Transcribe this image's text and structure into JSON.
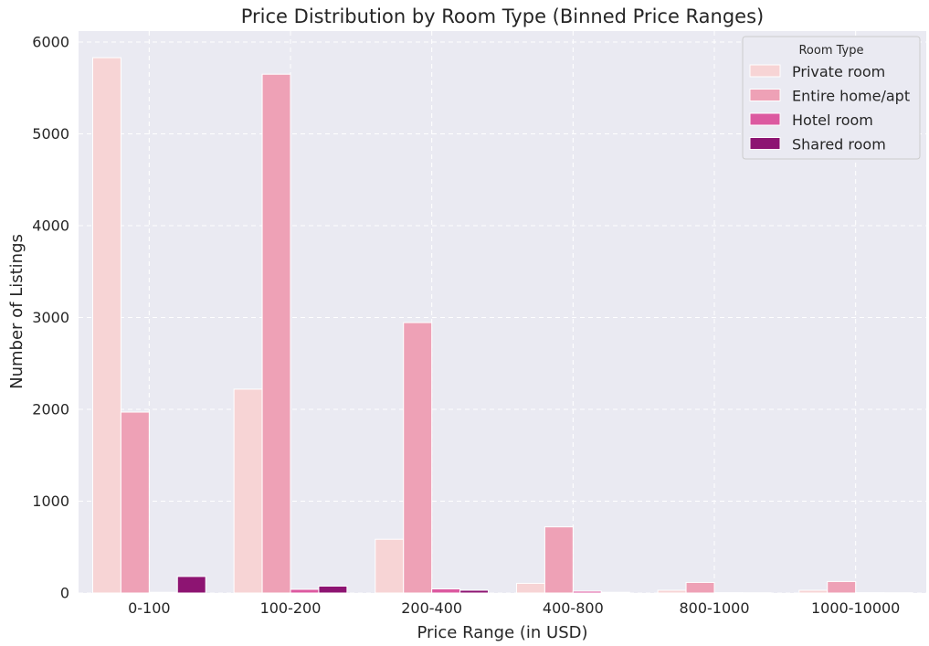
{
  "chart_data": {
    "type": "bar",
    "title": "Price Distribution by Room Type (Binned Price Ranges)",
    "xlabel": "Price Range (in USD)",
    "ylabel": "Number of Listings",
    "categories": [
      "0-100",
      "100-200",
      "200-400",
      "400-800",
      "800-1000",
      "1000-10000"
    ],
    "ylim": [
      0,
      6120
    ],
    "yticks": [
      0,
      1000,
      2000,
      3000,
      4000,
      5000,
      6000
    ],
    "grid": true,
    "legend": {
      "title": "Room Type",
      "position": "top-right"
    },
    "series": [
      {
        "name": "Private room",
        "color": "#f7d4d5",
        "values": [
          5830,
          2220,
          585,
          105,
          30,
          30
        ]
      },
      {
        "name": "Entire home/apt",
        "color": "#eea1b6",
        "values": [
          1970,
          5650,
          2945,
          720,
          115,
          125
        ]
      },
      {
        "name": "Hotel room",
        "color": "#dc59a0",
        "values": [
          8,
          40,
          45,
          20,
          4,
          4
        ]
      },
      {
        "name": "Shared room",
        "color": "#8d1472",
        "values": [
          180,
          75,
          30,
          8,
          3,
          3
        ]
      }
    ]
  }
}
